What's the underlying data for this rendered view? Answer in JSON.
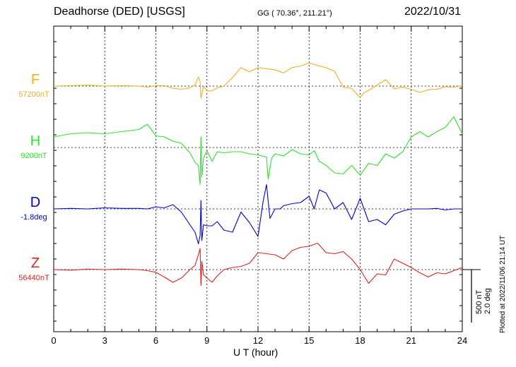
{
  "header": {
    "station": "Deadhorse (DED)  [USGS]",
    "coords": "GG ( 70.36°, 211.21°)",
    "date": "2022/10/31"
  },
  "plotted_note": "Plotted at 2022/11/06 21:14 UT",
  "scale_bar": {
    "line1": "500 nT",
    "line2": "2.0 deg"
  },
  "chart_data": {
    "type": "line",
    "title": "",
    "xlabel": "U T (hour)",
    "xlim": [
      0,
      24
    ],
    "xticks": [
      0,
      3,
      6,
      9,
      12,
      15,
      18,
      21,
      24
    ],
    "grid": true,
    "series": [
      {
        "name": "F",
        "baseline": "57200nT",
        "color": "#f0b020",
        "x": [
          0,
          1,
          2,
          3,
          4,
          5,
          5.5,
          6,
          6.5,
          7,
          7.5,
          8,
          8.3,
          8.5,
          8.6,
          8.65,
          8.8,
          9,
          9.3,
          9.6,
          10,
          10.5,
          11,
          11.5,
          12,
          12.5,
          13,
          13.5,
          14,
          14.5,
          15,
          15.5,
          16,
          16.5,
          17,
          17.5,
          18,
          18.2,
          18.5,
          19,
          19.5,
          20,
          20.5,
          21,
          21.5,
          22,
          22.5,
          23,
          23.5,
          24
        ],
        "y": [
          0,
          5,
          10,
          0,
          5,
          0,
          -10,
          5,
          5,
          -20,
          -30,
          -15,
          10,
          85,
          40,
          -115,
          0,
          -45,
          -45,
          -15,
          0,
          80,
          175,
          135,
          175,
          165,
          155,
          125,
          175,
          190,
          220,
          195,
          175,
          140,
          -10,
          -20,
          -110,
          -65,
          -40,
          10,
          60,
          -25,
          -10,
          -30,
          -60,
          -35,
          -30,
          -5,
          -10,
          5
        ]
      },
      {
        "name": "H",
        "baseline": "9200nT",
        "color": "#30e030",
        "x": [
          0,
          1,
          2,
          3,
          4,
          5,
          5.5,
          6,
          6.5,
          7,
          7.5,
          8,
          8.3,
          8.5,
          8.6,
          8.65,
          8.7,
          8.8,
          9,
          9.3,
          9.6,
          10,
          10.5,
          11,
          11.5,
          12,
          12.5,
          12.6,
          12.8,
          13,
          13.5,
          14,
          14.5,
          15,
          15.3,
          15.6,
          16,
          16.5,
          17,
          17.5,
          18,
          18.5,
          19,
          19.5,
          20,
          20.5,
          21,
          21.5,
          22,
          22.5,
          23,
          23.5,
          24
        ],
        "y": [
          100,
          130,
          140,
          130,
          150,
          170,
          220,
          110,
          100,
          60,
          40,
          -50,
          -140,
          -170,
          -350,
          100,
          -280,
          -100,
          -30,
          -130,
          -40,
          -50,
          -40,
          -40,
          -60,
          -70,
          -90,
          -300,
          -100,
          -60,
          -80,
          -20,
          -60,
          -70,
          -30,
          -130,
          -170,
          -240,
          -250,
          -170,
          -260,
          -150,
          -170,
          -60,
          -100,
          -40,
          100,
          150,
          100,
          150,
          190,
          290,
          130
        ]
      },
      {
        "name": "D",
        "baseline": "-1.8deg",
        "color": "#0000e0",
        "x": [
          0,
          1,
          2,
          3,
          4,
          5,
          5.5,
          6,
          6.5,
          7,
          7.5,
          8,
          8.3,
          8.5,
          8.6,
          8.65,
          8.7,
          8.8,
          9,
          9.3,
          9.6,
          10,
          10.5,
          11,
          11.5,
          12,
          12.3,
          12.5,
          12.7,
          13,
          13.3,
          13.5,
          14,
          14.5,
          15,
          15.3,
          15.6,
          16,
          16.5,
          17,
          17.5,
          18,
          18.5,
          19,
          19.5,
          20,
          20.5,
          21,
          21.5,
          22,
          22.5,
          23,
          23.5,
          24
        ],
        "y": [
          0,
          5,
          0,
          10,
          5,
          5,
          0,
          20,
          10,
          40,
          -30,
          -150,
          -220,
          -330,
          -250,
          80,
          -300,
          -150,
          -160,
          -160,
          -120,
          -200,
          -220,
          -30,
          -130,
          -260,
          70,
          230,
          -90,
          0,
          0,
          30,
          50,
          60,
          120,
          0,
          180,
          150,
          0,
          60,
          -100,
          100,
          -120,
          -100,
          -150,
          -50,
          -20,
          0,
          0,
          0,
          5,
          -10,
          0,
          0
        ]
      },
      {
        "name": "Z",
        "baseline": "56440nT",
        "color": "#e02020",
        "x": [
          0,
          1,
          2,
          3,
          4,
          5,
          5.5,
          6,
          6.5,
          7,
          7.5,
          8,
          8.3,
          8.5,
          8.6,
          8.65,
          8.7,
          8.8,
          9,
          9.3,
          9.6,
          10,
          10.5,
          11,
          11.5,
          12,
          12.5,
          13,
          13.5,
          14,
          14.5,
          15,
          15.5,
          16,
          16.5,
          17,
          17.5,
          18,
          18.5,
          19,
          19.5,
          20,
          20.5,
          21,
          21.5,
          22,
          22.5,
          23,
          23.5,
          24
        ],
        "y": [
          0,
          -5,
          5,
          0,
          5,
          0,
          -10,
          -25,
          -70,
          -120,
          -80,
          0,
          40,
          140,
          200,
          -150,
          80,
          -50,
          -80,
          -120,
          -60,
          0,
          20,
          30,
          60,
          160,
          150,
          140,
          100,
          180,
          210,
          220,
          250,
          160,
          150,
          170,
          100,
          0,
          -130,
          -40,
          -50,
          100,
          60,
          20,
          -30,
          -70,
          -30,
          -40,
          -10,
          20
        ]
      }
    ]
  }
}
